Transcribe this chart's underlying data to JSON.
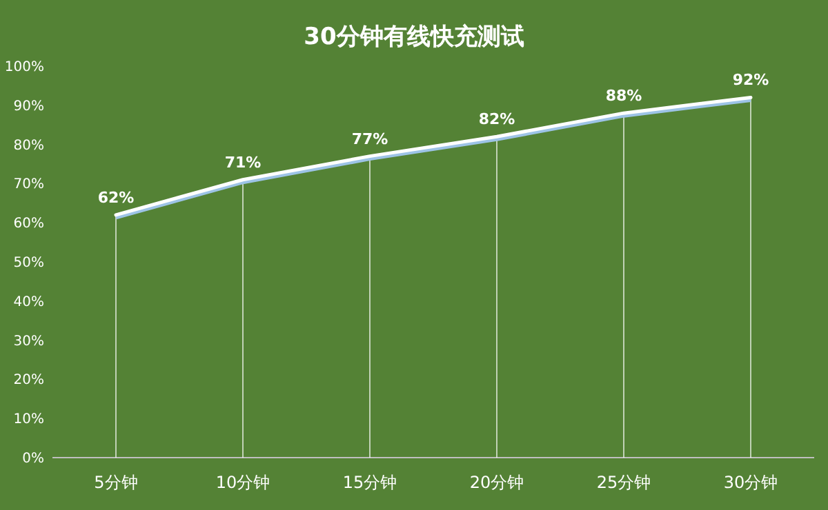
{
  "chart_data": {
    "type": "line",
    "title": "30分钟有线快充测试",
    "categories": [
      "5分钟",
      "10分钟",
      "15分钟",
      "20分钟",
      "25分钟",
      "30分钟"
    ],
    "series": [
      {
        "color": "#ffffff",
        "values": [
          62,
          71,
          77,
          82,
          88,
          92
        ],
        "value_labels": [
          "62%",
          "71%",
          "77%",
          "82%",
          "88%",
          "92%"
        ]
      }
    ],
    "ylim": [
      0,
      100
    ],
    "yticks": [
      {
        "value": 0,
        "label": "0%"
      },
      {
        "value": 10,
        "label": "10%"
      },
      {
        "value": 20,
        "label": "20%"
      },
      {
        "value": 30,
        "label": "30%"
      },
      {
        "value": 40,
        "label": "40%"
      },
      {
        "value": 50,
        "label": "50%"
      },
      {
        "value": 60,
        "label": "60%"
      },
      {
        "value": 70,
        "label": "70%"
      },
      {
        "value": 80,
        "label": "80%"
      },
      {
        "value": 90,
        "label": "90%"
      },
      {
        "value": 100,
        "label": "100%"
      }
    ],
    "grid": "x",
    "marker": "none",
    "line_style": "solid"
  }
}
